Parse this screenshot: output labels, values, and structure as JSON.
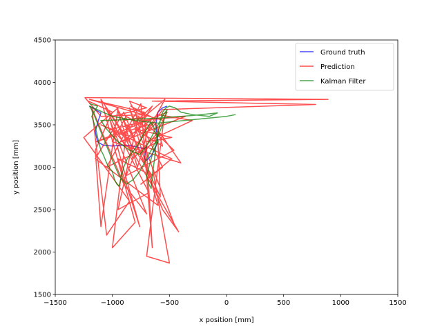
{
  "chart_data": {
    "type": "line",
    "title": "",
    "xlabel": "x position [mm]",
    "ylabel": "y position [mm]",
    "xlim": [
      -1500,
      1500
    ],
    "ylim": [
      1500,
      4500
    ],
    "xticks": [
      "−1500",
      "−1000",
      "−500",
      "0",
      "500",
      "1000",
      "1500"
    ],
    "yticks": [
      "1500",
      "2000",
      "2500",
      "3000",
      "3500",
      "4000",
      "4500"
    ],
    "legend_position": "upper-right",
    "grid": false,
    "series": [
      {
        "name": "Ground truth",
        "color": "#0000ff",
        "opacity": 0.7,
        "points": [
          [
            -1200,
            3720
          ],
          [
            -1150,
            3680
          ],
          [
            -1100,
            3640
          ],
          [
            -1120,
            3560
          ],
          [
            -1150,
            3420
          ],
          [
            -1130,
            3300
          ],
          [
            -1080,
            3260
          ],
          [
            -1000,
            3250
          ],
          [
            -900,
            3260
          ],
          [
            -820,
            3250
          ],
          [
            -760,
            3230
          ],
          [
            -720,
            3220
          ],
          [
            -700,
            3240
          ],
          [
            -720,
            3100
          ],
          [
            -700,
            3080
          ],
          [
            -650,
            3150
          ],
          [
            -600,
            3300
          ],
          [
            -620,
            3500
          ],
          [
            -600,
            3650
          ],
          [
            -560,
            3700
          ],
          [
            -520,
            3720
          ]
        ]
      },
      {
        "name": "Prediction",
        "color": "#ff0000",
        "opacity": 0.7,
        "points": [
          [
            -1210,
            3780
          ],
          [
            -1000,
            3650
          ],
          [
            -1150,
            3200
          ],
          [
            -1100,
            2300
          ],
          [
            -950,
            3700
          ],
          [
            -1250,
            3350
          ],
          [
            -850,
            2600
          ],
          [
            -1050,
            2200
          ],
          [
            -1180,
            3700
          ],
          [
            -900,
            2800
          ],
          [
            -700,
            2450
          ],
          [
            -1020,
            3550
          ],
          [
            -760,
            2300
          ],
          [
            -950,
            3100
          ],
          [
            -650,
            2900
          ],
          [
            -1100,
            3800
          ],
          [
            -800,
            2350
          ],
          [
            -1000,
            2050
          ],
          [
            -870,
            3500
          ],
          [
            -580,
            2650
          ],
          [
            -600,
            3300
          ],
          [
            -1050,
            3000
          ],
          [
            -750,
            3750
          ],
          [
            -650,
            2050
          ],
          [
            -720,
            3650
          ],
          [
            -1200,
            3800
          ],
          [
            -550,
            3550
          ],
          [
            -700,
            1950
          ],
          [
            -500,
            1870
          ],
          [
            -650,
            3000
          ],
          [
            -450,
            2300
          ],
          [
            -850,
            3700
          ],
          [
            -600,
            2550
          ],
          [
            -1150,
            3100
          ],
          [
            -900,
            3650
          ],
          [
            -560,
            2500
          ],
          [
            -420,
            2240
          ],
          [
            -1000,
            3600
          ],
          [
            -700,
            3700
          ],
          [
            -850,
            3780
          ],
          [
            -560,
            3000
          ],
          [
            -750,
            2800
          ],
          [
            -480,
            3100
          ],
          [
            -1100,
            3500
          ],
          [
            -820,
            3350
          ],
          [
            -650,
            3720
          ],
          [
            -900,
            3400
          ],
          [
            -1060,
            3700
          ],
          [
            -680,
            2700
          ],
          [
            -950,
            2500
          ],
          [
            -770,
            3600
          ],
          [
            -460,
            3200
          ],
          [
            -880,
            2900
          ],
          [
            -700,
            3500
          ],
          [
            -1140,
            3300
          ],
          [
            -520,
            3650
          ],
          [
            -620,
            3380
          ],
          [
            -820,
            3100
          ],
          [
            -960,
            3700
          ],
          [
            -740,
            3150
          ],
          [
            -580,
            3400
          ],
          [
            -400,
            3050
          ],
          [
            -1000,
            3300
          ],
          [
            -880,
            3600
          ],
          [
            -680,
            3450
          ],
          [
            -540,
            3800
          ],
          [
            -760,
            3550
          ],
          [
            -360,
            3600
          ],
          [
            -920,
            3300
          ],
          [
            -600,
            3620
          ],
          [
            -300,
            3550
          ],
          [
            -700,
            3300
          ],
          [
            -480,
            3350
          ],
          [
            -800,
            3450
          ],
          [
            -560,
            3250
          ],
          [
            -620,
            3520
          ],
          [
            -840,
            3200
          ],
          [
            -1000,
            3450
          ],
          [
            -660,
            3560
          ],
          [
            -780,
            3000
          ],
          [
            -900,
            3550
          ],
          [
            -700,
            3600
          ],
          [
            -800,
            3650
          ],
          [
            -750,
            3400
          ],
          [
            -650,
            3500
          ],
          [
            -560,
            3680
          ],
          [
            780,
            3740
          ],
          [
            -650,
            3780
          ],
          [
            890,
            3800
          ],
          [
            -1240,
            3820
          ],
          [
            -1100,
            3600
          ],
          [
            -720,
            3620
          ],
          [
            -840,
            3720
          ],
          [
            -640,
            3580
          ]
        ]
      },
      {
        "name": "Kalman Filter",
        "color": "#008000",
        "opacity": 0.7,
        "points": [
          [
            -1200,
            3750
          ],
          [
            -1130,
            3720
          ],
          [
            -1180,
            3600
          ],
          [
            -1150,
            3480
          ],
          [
            -1120,
            3300
          ],
          [
            -1100,
            3200
          ],
          [
            -1080,
            3150
          ],
          [
            -1050,
            3050
          ],
          [
            -1030,
            3000
          ],
          [
            -1000,
            2950
          ],
          [
            -980,
            2850
          ],
          [
            -960,
            2800
          ],
          [
            -940,
            2780
          ],
          [
            -920,
            2900
          ],
          [
            -900,
            3000
          ],
          [
            -870,
            3100
          ],
          [
            -840,
            3150
          ],
          [
            -800,
            3220
          ],
          [
            -760,
            3300
          ],
          [
            -730,
            3380
          ],
          [
            -700,
            3450
          ],
          [
            -680,
            3500
          ],
          [
            -660,
            3520
          ],
          [
            -640,
            3480
          ],
          [
            -620,
            3400
          ],
          [
            -600,
            3300
          ],
          [
            -640,
            3200
          ],
          [
            -660,
            3100
          ],
          [
            -680,
            3000
          ],
          [
            -700,
            2900
          ],
          [
            -680,
            2800
          ],
          [
            -660,
            2750
          ],
          [
            -650,
            2900
          ],
          [
            -630,
            3100
          ],
          [
            -620,
            3250
          ],
          [
            -600,
            3400
          ],
          [
            -580,
            3550
          ],
          [
            -560,
            3650
          ],
          [
            -530,
            3700
          ],
          [
            -500,
            3720
          ],
          [
            -450,
            3700
          ],
          [
            -400,
            3650
          ],
          [
            -300,
            3620
          ],
          [
            -150,
            3600
          ],
          [
            -80,
            3640
          ],
          [
            -300,
            3610
          ],
          [
            -600,
            3580
          ],
          [
            -900,
            3560
          ],
          [
            -1100,
            3550
          ],
          [
            -1050,
            3450
          ],
          [
            -950,
            3300
          ],
          [
            -850,
            3200
          ],
          [
            -760,
            3150
          ],
          [
            -700,
            3250
          ],
          [
            -620,
            3450
          ],
          [
            -560,
            3600
          ],
          [
            -520,
            3680
          ],
          [
            -560,
            3500
          ],
          [
            -620,
            3300
          ],
          [
            -700,
            3100
          ],
          [
            -760,
            2950
          ],
          [
            -820,
            2850
          ],
          [
            -880,
            2800
          ],
          [
            -940,
            2900
          ],
          [
            -990,
            3050
          ],
          [
            -1050,
            3250
          ],
          [
            -1110,
            3450
          ],
          [
            -1170,
            3650
          ],
          [
            -1200,
            3720
          ],
          [
            -1000,
            3600
          ],
          [
            -800,
            3550
          ],
          [
            -600,
            3520
          ],
          [
            -300,
            3560
          ],
          [
            0,
            3600
          ],
          [
            80,
            3620
          ]
        ]
      }
    ]
  }
}
